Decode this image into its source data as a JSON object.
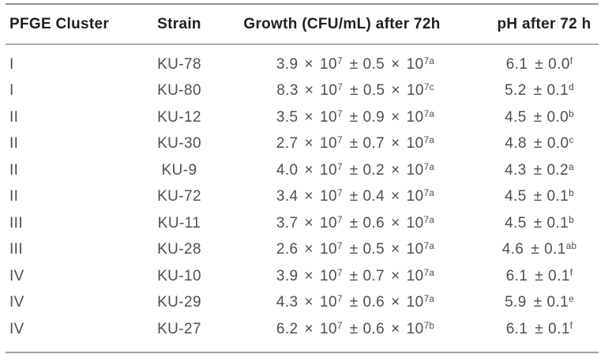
{
  "table": {
    "columns": [
      {
        "label": "PFGE Cluster",
        "align": "left"
      },
      {
        "label": "Strain",
        "align": "center"
      },
      {
        "label": "Growth (CFU/mL) after 72h",
        "align": "center"
      },
      {
        "label": "pH after 72 h",
        "align": "center"
      }
    ],
    "notation": {
      "base": "10",
      "exponent": "7",
      "times_sign": "×",
      "plus_minus_sign": "±"
    },
    "rows": [
      {
        "cluster": "I",
        "strain": "KU-78",
        "growth": {
          "mean": "3.9",
          "sd": "0.5",
          "sup": "a"
        },
        "ph": {
          "mean": "6.1",
          "sd": "0.0",
          "sup": "f"
        }
      },
      {
        "cluster": "I",
        "strain": "KU-80",
        "growth": {
          "mean": "8.3",
          "sd": "0.5",
          "sup": "c"
        },
        "ph": {
          "mean": "5.2",
          "sd": "0.1",
          "sup": "d"
        }
      },
      {
        "cluster": "II",
        "strain": "KU-12",
        "growth": {
          "mean": "3.5",
          "sd": "0.9",
          "sup": "a"
        },
        "ph": {
          "mean": "4.5",
          "sd": "0.0",
          "sup": "b"
        }
      },
      {
        "cluster": "II",
        "strain": "KU-30",
        "growth": {
          "mean": "2.7",
          "sd": "0.7",
          "sup": "a"
        },
        "ph": {
          "mean": "4.8",
          "sd": "0.0",
          "sup": "c"
        }
      },
      {
        "cluster": "II",
        "strain": "KU-9",
        "growth": {
          "mean": "4.0",
          "sd": "0.2",
          "sup": "a"
        },
        "ph": {
          "mean": "4.3",
          "sd": "0.2",
          "sup": "a"
        }
      },
      {
        "cluster": "II",
        "strain": "KU-72",
        "growth": {
          "mean": "3.4",
          "sd": "0.4",
          "sup": "a"
        },
        "ph": {
          "mean": "4.5",
          "sd": "0.1",
          "sup": "b"
        }
      },
      {
        "cluster": "III",
        "strain": "KU-11",
        "growth": {
          "mean": "3.7",
          "sd": "0.6",
          "sup": "a"
        },
        "ph": {
          "mean": "4.5",
          "sd": "0.1",
          "sup": "b"
        }
      },
      {
        "cluster": "III",
        "strain": "KU-28",
        "growth": {
          "mean": "2.6",
          "sd": "0.5",
          "sup": "a"
        },
        "ph": {
          "mean": "4.6",
          "sd": "0.1",
          "sup": "ab"
        }
      },
      {
        "cluster": "IV",
        "strain": "KU-10",
        "growth": {
          "mean": "3.9",
          "sd": "0.7",
          "sup": "a"
        },
        "ph": {
          "mean": "6.1",
          "sd": "0.1",
          "sup": "f"
        }
      },
      {
        "cluster": "IV",
        "strain": "KU-29",
        "growth": {
          "mean": "4.3",
          "sd": "0.6",
          "sup": "a"
        },
        "ph": {
          "mean": "5.9",
          "sd": "0.1",
          "sup": "e"
        }
      },
      {
        "cluster": "IV",
        "strain": "KU-27",
        "growth": {
          "mean": "6.2",
          "sd": "0.6",
          "sup": "b"
        },
        "ph": {
          "mean": "6.1",
          "sd": "0.1",
          "sup": "f"
        }
      }
    ]
  },
  "colors": {
    "header_text": "#221e1f",
    "body_text": "#4e4f51",
    "rule_top": "#8f9193",
    "rule_mid": "#aaacae",
    "rule_bottom": "#9fa1a3",
    "background": "#ffffff"
  }
}
